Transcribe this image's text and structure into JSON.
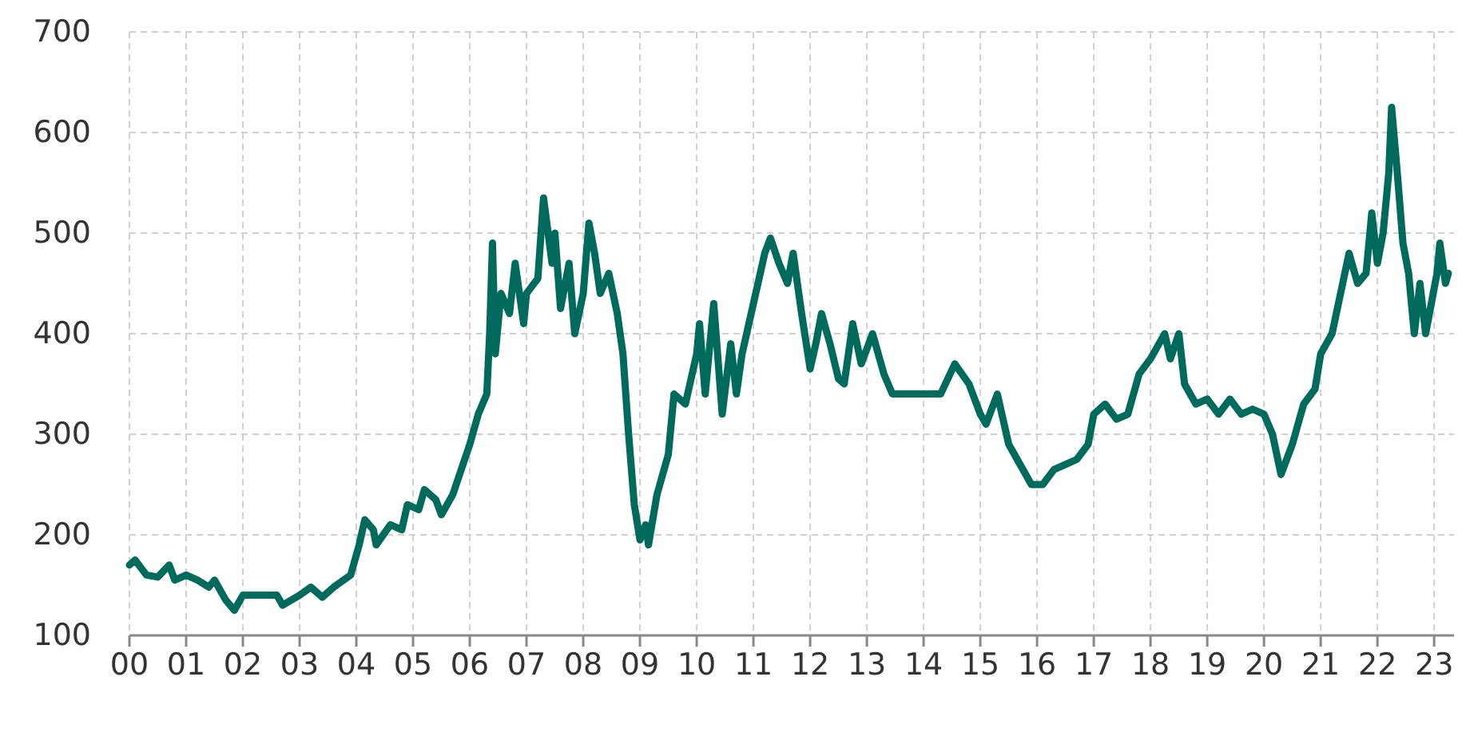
{
  "chart_data": {
    "type": "line",
    "x": [
      0,
      0.1,
      0.3,
      0.5,
      0.7,
      0.8,
      1.0,
      1.2,
      1.4,
      1.5,
      1.7,
      1.85,
      2.0,
      2.3,
      2.6,
      2.7,
      3.0,
      3.2,
      3.4,
      3.6,
      3.9,
      4.05,
      4.15,
      4.3,
      4.35,
      4.6,
      4.8,
      4.9,
      5.1,
      5.2,
      5.4,
      5.5,
      5.7,
      6.0,
      6.15,
      6.3,
      6.35,
      6.4,
      6.45,
      6.55,
      6.7,
      6.8,
      6.95,
      7.0,
      7.2,
      7.3,
      7.45,
      7.5,
      7.6,
      7.75,
      7.85,
      8.0,
      8.1,
      8.2,
      8.3,
      8.45,
      8.6,
      8.7,
      8.8,
      8.9,
      9.0,
      9.1,
      9.15,
      9.3,
      9.5,
      9.6,
      9.8,
      10.0,
      10.05,
      10.15,
      10.3,
      10.45,
      10.6,
      10.7,
      10.8,
      11.0,
      11.2,
      11.3,
      11.45,
      11.6,
      11.7,
      11.85,
      12.0,
      12.1,
      12.2,
      12.35,
      12.5,
      12.6,
      12.75,
      12.9,
      13.1,
      13.3,
      13.45,
      13.6,
      14.0,
      14.3,
      14.55,
      14.8,
      15.0,
      15.1,
      15.3,
      15.5,
      15.7,
      15.9,
      16.1,
      16.3,
      16.5,
      16.7,
      16.9,
      17.0,
      17.2,
      17.4,
      17.6,
      17.8,
      18.0,
      18.15,
      18.25,
      18.35,
      18.5,
      18.6,
      18.8,
      19.0,
      19.2,
      19.4,
      19.6,
      19.8,
      20.0,
      20.15,
      20.3,
      20.5,
      20.7,
      20.9,
      21.0,
      21.2,
      21.35,
      21.5,
      21.65,
      21.8,
      21.9,
      22.0,
      22.1,
      22.2,
      22.25,
      22.35,
      22.45,
      22.55,
      22.65,
      22.75,
      22.85,
      22.95,
      23.05,
      23.1,
      23.2,
      23.25
    ],
    "series": [
      {
        "color": "#006a5c",
        "values": [
          170,
          175,
          160,
          158,
          170,
          155,
          160,
          155,
          148,
          155,
          135,
          125,
          140,
          140,
          140,
          130,
          140,
          148,
          138,
          148,
          160,
          190,
          215,
          205,
          190,
          210,
          205,
          230,
          225,
          245,
          235,
          220,
          240,
          290,
          320,
          340,
          400,
          490,
          380,
          440,
          420,
          470,
          410,
          440,
          455,
          535,
          470,
          500,
          425,
          470,
          400,
          440,
          510,
          480,
          440,
          460,
          420,
          380,
          300,
          230,
          195,
          210,
          190,
          240,
          280,
          340,
          330,
          380,
          410,
          340,
          430,
          320,
          390,
          340,
          380,
          430,
          480,
          495,
          470,
          450,
          480,
          420,
          365,
          390,
          420,
          390,
          355,
          350,
          410,
          370,
          400,
          360,
          340,
          340,
          340,
          340,
          370,
          350,
          320,
          310,
          340,
          290,
          270,
          250,
          250,
          265,
          270,
          275,
          290,
          320,
          330,
          315,
          320,
          360,
          375,
          390,
          400,
          375,
          400,
          350,
          330,
          335,
          320,
          335,
          320,
          325,
          320,
          300,
          260,
          290,
          330,
          345,
          380,
          400,
          440,
          480,
          450,
          460,
          520,
          470,
          500,
          560,
          625,
          560,
          490,
          460,
          400,
          450,
          400,
          430,
          460,
          490,
          450,
          460
        ]
      }
    ],
    "xlim": [
      0,
      23.35
    ],
    "ylim": [
      100,
      700
    ],
    "xticks": [
      {
        "value": 0,
        "label": "00"
      },
      {
        "value": 1,
        "label": "01"
      },
      {
        "value": 2,
        "label": "02"
      },
      {
        "value": 3,
        "label": "03"
      },
      {
        "value": 4,
        "label": "04"
      },
      {
        "value": 5,
        "label": "05"
      },
      {
        "value": 6,
        "label": "06"
      },
      {
        "value": 7,
        "label": "07"
      },
      {
        "value": 8,
        "label": "08"
      },
      {
        "value": 9,
        "label": "09"
      },
      {
        "value": 10,
        "label": "10"
      },
      {
        "value": 11,
        "label": "11"
      },
      {
        "value": 12,
        "label": "12"
      },
      {
        "value": 13,
        "label": "13"
      },
      {
        "value": 14,
        "label": "14"
      },
      {
        "value": 15,
        "label": "15"
      },
      {
        "value": 16,
        "label": "16"
      },
      {
        "value": 17,
        "label": "17"
      },
      {
        "value": 18,
        "label": "18"
      },
      {
        "value": 19,
        "label": "19"
      },
      {
        "value": 20,
        "label": "20"
      },
      {
        "value": 21,
        "label": "21"
      },
      {
        "value": 22,
        "label": "22"
      },
      {
        "value": 23,
        "label": "23"
      }
    ],
    "yticks": [
      100,
      200,
      300,
      400,
      500,
      600,
      700
    ],
    "grid": true,
    "marker": "none",
    "line_style": "solid"
  }
}
